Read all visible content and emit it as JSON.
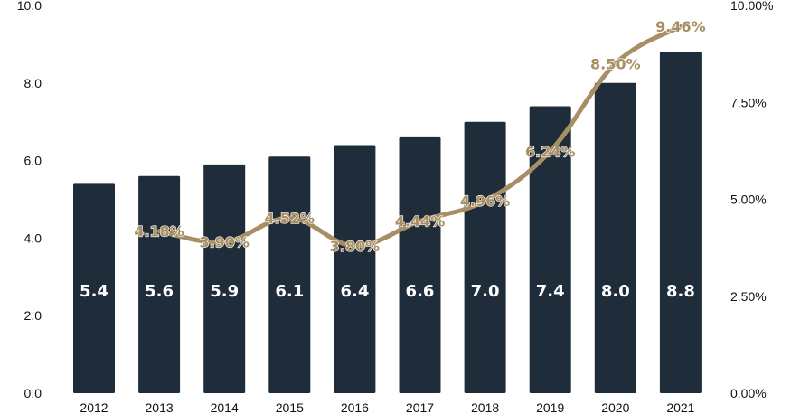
{
  "chart_data": {
    "type": "bar",
    "categories": [
      "2012",
      "2013",
      "2014",
      "2015",
      "2016",
      "2017",
      "2018",
      "2019",
      "2020",
      "2021"
    ],
    "series": [
      {
        "type": "bar",
        "axis": "left",
        "values": [
          5.4,
          5.6,
          5.9,
          6.1,
          6.4,
          6.6,
          7.0,
          7.4,
          8.0,
          8.8
        ],
        "data_labels": [
          "5.4",
          "5.6",
          "5.9",
          "6.1",
          "6.4",
          "6.6",
          "7.0",
          "7.4",
          "8.0",
          "8.8"
        ],
        "color": "#1f2d3b"
      },
      {
        "type": "line",
        "axis": "right",
        "values": [
          null,
          4.18,
          3.9,
          4.52,
          3.8,
          4.44,
          4.96,
          6.24,
          8.5,
          9.46
        ],
        "data_labels": [
          "",
          "4.18%",
          "3.90%",
          "4.52%",
          "3.80%",
          "4.44%",
          "4.96%",
          "6.24%",
          "8.50%",
          "9.46%"
        ],
        "color": "#a88e63"
      }
    ],
    "y_left": {
      "ylim": [
        0,
        10
      ],
      "ticks": [
        "0.0",
        "2.0",
        "4.0",
        "6.0",
        "8.0",
        "10.0"
      ]
    },
    "y_right": {
      "ylim": [
        0,
        10
      ],
      "ticks": [
        "0.00%",
        "2.50%",
        "5.00%",
        "7.50%",
        "10.00%"
      ]
    },
    "grid": false,
    "legend": "none"
  }
}
